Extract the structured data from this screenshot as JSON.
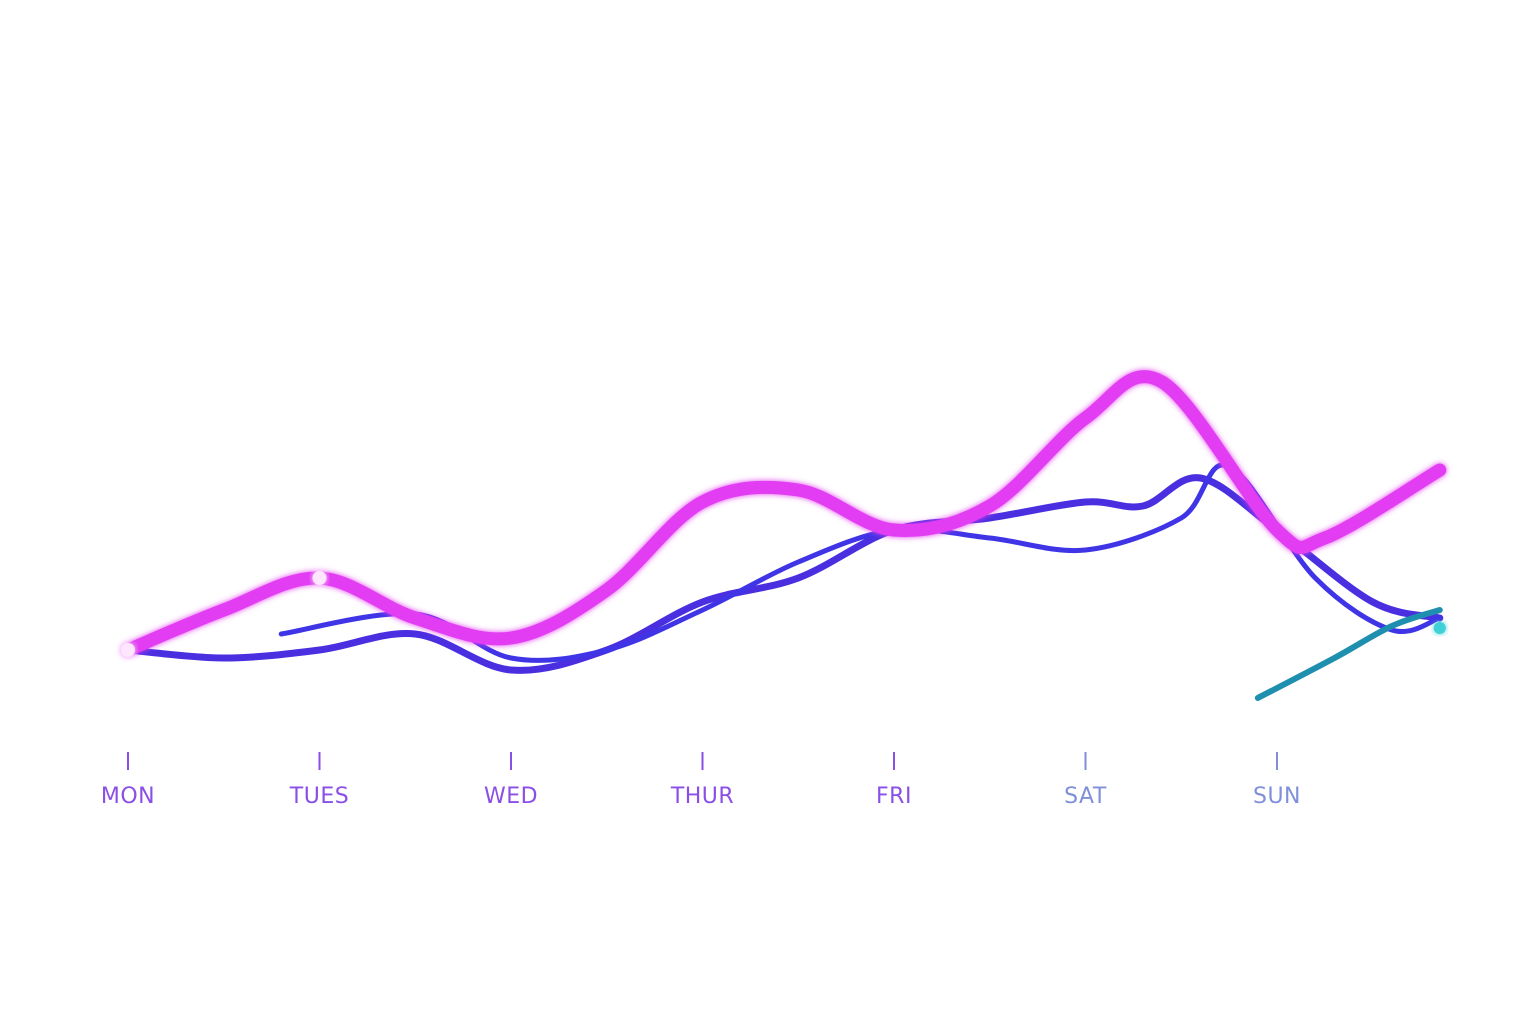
{
  "chart_data": {
    "type": "line",
    "title": "",
    "xlabel": "",
    "ylabel": "",
    "categories": [
      "MON",
      "TUES",
      "WED",
      "THUR",
      "FRI",
      "SAT",
      "SUN"
    ],
    "x_range": [
      0,
      6.85
    ],
    "ylim": [
      0,
      100
    ],
    "grid": false,
    "legend": "none",
    "series": [
      {
        "color": "#e23cf2",
        "x": [
          0,
          0.5,
          1,
          1.5,
          2,
          2.5,
          3,
          3.5,
          4,
          4.5,
          5,
          5.4,
          6,
          6.25,
          6.85
        ],
        "values": [
          10,
          20,
          28,
          18,
          13,
          25,
          47,
          50,
          40,
          46,
          68,
          77,
          40,
          38,
          55
        ]
      },
      {
        "color": "#4a2fe0",
        "x": [
          0,
          0.5,
          1,
          1.5,
          2,
          2.5,
          3,
          3.5,
          4,
          4.5,
          5,
          5.3,
          5.6,
          6,
          6.5,
          6.85
        ],
        "values": [
          10,
          8,
          10,
          14,
          5,
          10,
          22,
          28,
          40,
          43,
          47,
          46,
          53,
          40,
          22,
          18
        ]
      },
      {
        "color": "#3f34e6",
        "x": [
          0.8,
          1.5,
          2,
          2.5,
          3,
          3.5,
          4,
          4.5,
          5,
          5.5,
          5.75,
          6.2,
          6.6,
          6.85
        ],
        "values": [
          14,
          19,
          8,
          10,
          20,
          32,
          40,
          38,
          35,
          43,
          56,
          28,
          15,
          18
        ]
      },
      {
        "color": "#1f8fb0",
        "x": [
          5.9,
          6.3,
          6.6,
          6.85
        ],
        "values": [
          -2,
          8,
          16,
          20
        ]
      }
    ]
  }
}
